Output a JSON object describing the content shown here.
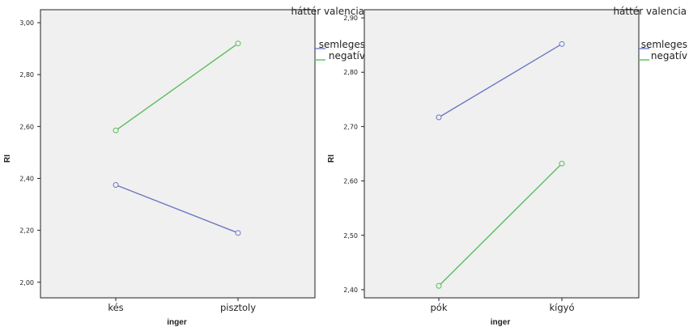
{
  "chart_data": [
    {
      "type": "line",
      "title": "",
      "xlabel": "inger",
      "ylabel": "RI",
      "categories": [
        "kés",
        "pisztoly"
      ],
      "ylim": [
        1.94,
        3.05
      ],
      "yticks": [
        "2,00",
        "2,20",
        "2,40",
        "2,60",
        "2,80",
        "3,00"
      ],
      "ytick_values": [
        2.0,
        2.2,
        2.4,
        2.6,
        2.8,
        3.0
      ],
      "legend_title": "háttér valencia",
      "series": [
        {
          "name": "semleges",
          "color": "#6b78c4",
          "values": [
            2.375,
            2.19
          ]
        },
        {
          "name": "negatív",
          "color": "#5bbd5b",
          "values": [
            2.585,
            2.92
          ]
        }
      ]
    },
    {
      "type": "line",
      "title": "",
      "xlabel": "inger",
      "ylabel": "RI",
      "categories": [
        "pók",
        "kígyó"
      ],
      "ylim": [
        2.385,
        2.915
      ],
      "yticks": [
        "2,40",
        "2,50",
        "2,60",
        "2,70",
        "2,80",
        "2,90"
      ],
      "ytick_values": [
        2.4,
        2.5,
        2.6,
        2.7,
        2.8,
        2.9
      ],
      "legend_title": "háttér valencia",
      "series": [
        {
          "name": "semleges",
          "color": "#6b78c4",
          "values": [
            2.717,
            2.852
          ]
        },
        {
          "name": "negatív",
          "color": "#5bbd5b",
          "values": [
            2.407,
            2.632
          ]
        }
      ]
    }
  ]
}
